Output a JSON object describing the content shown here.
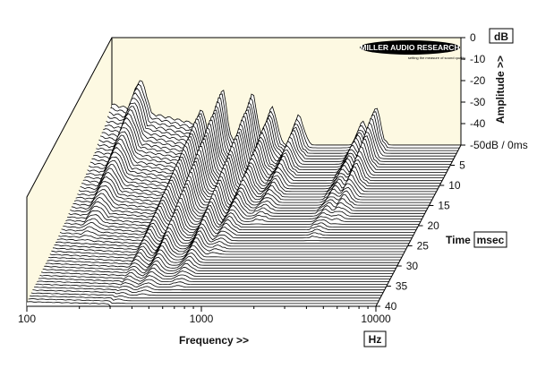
{
  "chart_data": {
    "type": "waterfall-3d",
    "title": "",
    "brand": {
      "name": "MILLER AUDIO RESEARCH",
      "tagline": "setting the measure of sound quality"
    },
    "x_axis": {
      "label": "Frequency >>",
      "unit": "Hz",
      "scale": "log",
      "range": [
        100,
        10000
      ],
      "ticks": [
        "100",
        "1000",
        "10000"
      ]
    },
    "z_axis": {
      "label": "Amplitude >>",
      "unit": "dB",
      "range": [
        -50,
        0
      ],
      "ticks": [
        "0",
        "-10",
        "-20",
        "-30",
        "-40",
        "-50dB / 0ms"
      ]
    },
    "time_axis": {
      "label": "Time",
      "unit": "msec",
      "range": [
        0,
        40
      ],
      "ticks": [
        "5",
        "10",
        "15",
        "20",
        "25",
        "30",
        "35",
        "40"
      ]
    },
    "slice_count": 60,
    "resonances": [
      {
        "freq_hz": 145,
        "peak_db": -21,
        "decay_ms": 30
      },
      {
        "freq_hz": 325,
        "peak_db": -34,
        "decay_ms": 40
      },
      {
        "freq_hz": 430,
        "peak_db": -25,
        "decay_ms": 38
      },
      {
        "freq_hz": 640,
        "peak_db": -27,
        "decay_ms": 36
      },
      {
        "freq_hz": 830,
        "peak_db": -33,
        "decay_ms": 28
      },
      {
        "freq_hz": 1180,
        "peak_db": -37,
        "decay_ms": 20
      },
      {
        "freq_hz": 2750,
        "peak_db": -40,
        "decay_ms": 24
      },
      {
        "freq_hz": 3250,
        "peak_db": -33,
        "decay_ms": 20
      }
    ],
    "colors": {
      "back_panel": "#fdf9e2",
      "line": "#000000",
      "fill": "#ffffff"
    }
  }
}
